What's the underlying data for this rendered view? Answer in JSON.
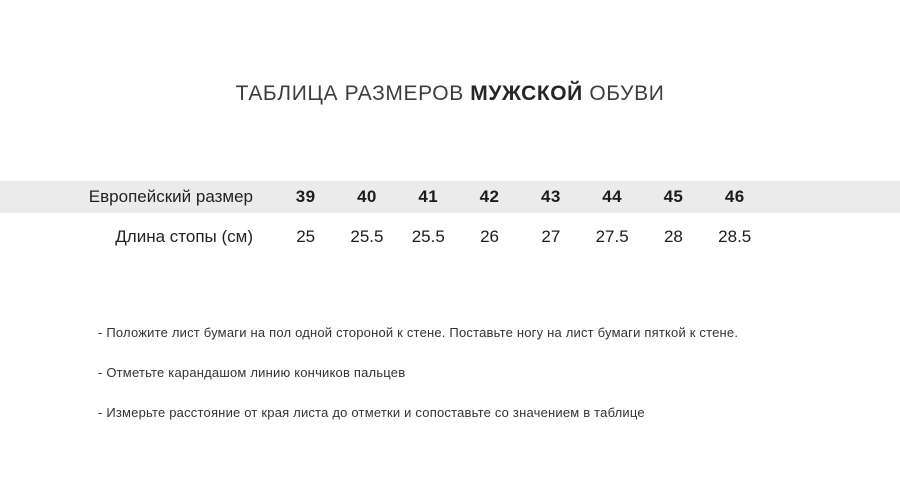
{
  "title": {
    "prefix": "ТАБЛИЦА РАЗМЕРОВ",
    "bold": "МУЖСКОЙ",
    "suffix": "ОБУВИ"
  },
  "size_table": {
    "rows": [
      {
        "label": "Европейский размер",
        "values": [
          "39",
          "40",
          "41",
          "42",
          "43",
          "44",
          "45",
          "46"
        ]
      },
      {
        "label": "Длина стопы (см)",
        "values": [
          "25",
          "25.5",
          "25.5",
          "26",
          "27",
          "27.5",
          "28",
          "28.5"
        ]
      }
    ]
  },
  "instructions": [
    "- Положите лист бумаги на пол одной стороной к стене. Поставьте ногу на лист бумаги пяткой к стене.",
    "- Отметьте карандашом линию кончиков пальцев",
    "- Измерьте расстояние от края листа до отметки и сопоставьте со значением в таблице"
  ],
  "colors": {
    "header_row_bg": "#ebebeb",
    "title_text": "#3d3d3d",
    "table_text": "#1c1c1c",
    "instruction_text": "#333333"
  }
}
